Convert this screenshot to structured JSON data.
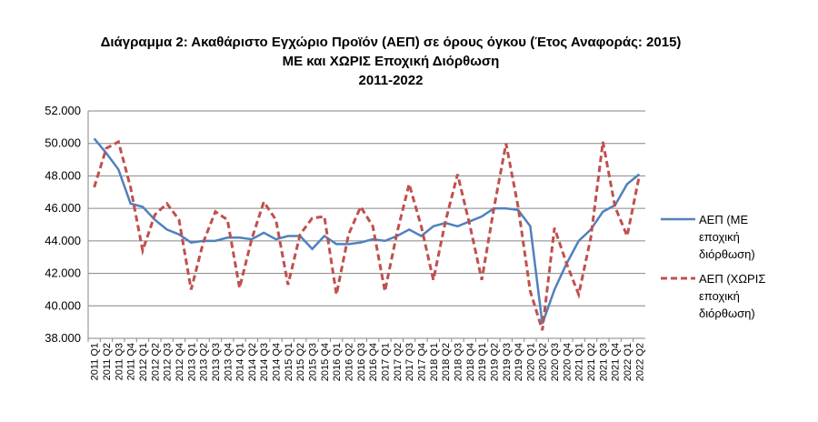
{
  "chart_data": {
    "type": "line",
    "title_lines": [
      "Διάγραμμα 2: Ακαθάριστο Εγχώριο Προϊόν (ΑΕΠ) σε όρους όγκου (Έτος Αναφοράς: 2015)",
      "ΜΕ και ΧΩΡΙΣ Εποχική Διόρθωση",
      "2011-2022"
    ],
    "categories": [
      "2011 Q1",
      "2011 Q2",
      "2011 Q3",
      "2011 Q4",
      "2012 Q1",
      "2012 Q2",
      "2012 Q3",
      "2012 Q4",
      "2013 Q1",
      "2013 Q2",
      "2013 Q3",
      "2013 Q4",
      "2014 Q1",
      "2014 Q2",
      "2014 Q3",
      "2014 Q4",
      "2015 Q1",
      "2015 Q2",
      "2015 Q3",
      "2015 Q4",
      "2016 Q1",
      "2016 Q2",
      "2016 Q3",
      "2016 Q4",
      "2017 Q1",
      "2017 Q2",
      "2017 Q3",
      "2017 Q4",
      "2018 Q1",
      "2018 Q2",
      "2018 Q3",
      "2018 Q4",
      "2019 Q1",
      "2019 Q2",
      "2019 Q3",
      "2019 Q4",
      "2020 Q1",
      "2020 Q2",
      "2020 Q3",
      "2020 Q4",
      "2021 Q1",
      "2021 Q2",
      "2021 Q3",
      "2021 Q4",
      "2022 Q1",
      "2022 Q2"
    ],
    "series": [
      {
        "name": "ΑΕΠ (ΜΕ εποχική διόρθωση)",
        "color": "#4f81bd",
        "dashed": false,
        "values": [
          50300,
          49400,
          48400,
          46300,
          46100,
          45300,
          44700,
          44400,
          43900,
          44000,
          44000,
          44200,
          44200,
          44100,
          44500,
          44100,
          44300,
          44300,
          43500,
          44300,
          43800,
          43800,
          43900,
          44100,
          44000,
          44300,
          44700,
          44300,
          44900,
          45100,
          44900,
          45200,
          45500,
          46000,
          46000,
          45900,
          44900,
          38900,
          41000,
          42600,
          44000,
          44700,
          45800,
          46200,
          47500,
          48100
        ]
      },
      {
        "name": "ΑΕΠ (ΧΩΡΙΣ εποχική διόρθωση)",
        "color": "#c0504d",
        "dashed": true,
        "values": [
          47300,
          49700,
          50100,
          47300,
          43400,
          45600,
          46300,
          45300,
          41000,
          43900,
          45800,
          45300,
          41100,
          44100,
          46400,
          45300,
          41300,
          44400,
          45400,
          45500,
          40700,
          44400,
          46100,
          44900,
          40900,
          44500,
          47500,
          44900,
          41600,
          45200,
          48100,
          45000,
          41600,
          46000,
          50000,
          46100,
          40900,
          38500,
          44800,
          42600,
          40700,
          44200,
          50100,
          46100,
          44300,
          48000
        ]
      }
    ],
    "ylim": [
      38000,
      52000
    ],
    "yticks": [
      {
        "value": 38000,
        "label": "38.000"
      },
      {
        "value": 40000,
        "label": "40.000"
      },
      {
        "value": 42000,
        "label": "42.000"
      },
      {
        "value": 44000,
        "label": "44.000"
      },
      {
        "value": 46000,
        "label": "46.000"
      },
      {
        "value": 48000,
        "label": "48.000"
      },
      {
        "value": 50000,
        "label": "50.000"
      },
      {
        "value": 52000,
        "label": "52.000"
      }
    ],
    "grid": true,
    "legend": "right"
  }
}
